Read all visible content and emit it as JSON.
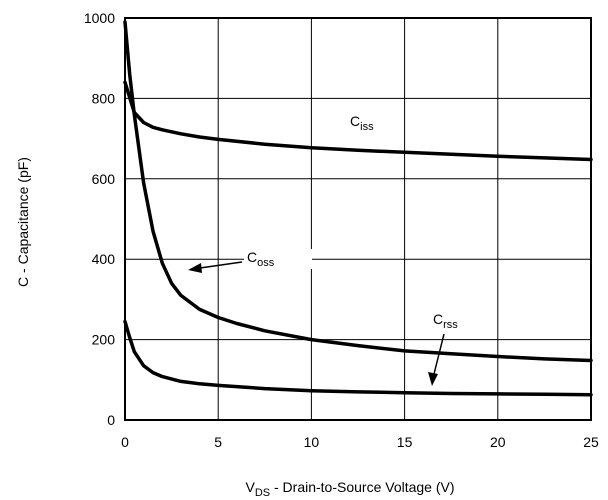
{
  "chart_data": {
    "type": "line",
    "title": "",
    "xlabel": {
      "main": "V",
      "sub": "DS",
      "rest": " - Drain-to-Source Voltage (V)"
    },
    "ylabel": "C - Capacitance (pF)",
    "xlim": [
      0,
      25
    ],
    "ylim": [
      0,
      1000
    ],
    "xticks": [
      "0",
      "5",
      "10",
      "15",
      "20",
      "25"
    ],
    "yticks": [
      "0",
      "200",
      "400",
      "600",
      "800",
      "1000"
    ],
    "grid": true,
    "legend": "none (inline labels)",
    "series": [
      {
        "name": "Ciss",
        "label": {
          "main": "C",
          "sub": "iss"
        },
        "x": [
          0,
          0.5,
          1,
          1.5,
          2,
          3,
          4,
          5,
          7.5,
          10,
          12.5,
          15,
          17.5,
          20,
          22.5,
          25
        ],
        "y": [
          840,
          765,
          740,
          728,
          722,
          712,
          704,
          698,
          686,
          677,
          671,
          666,
          661,
          656,
          652,
          648
        ]
      },
      {
        "name": "Coss",
        "label": {
          "main": "C",
          "sub": "oss"
        },
        "x": [
          0,
          0.25,
          0.5,
          1,
          1.5,
          2,
          2.5,
          3,
          4,
          5,
          6,
          7.5,
          10,
          12.5,
          15,
          17.5,
          20,
          22.5,
          25
        ],
        "y": [
          990,
          860,
          760,
          590,
          470,
          390,
          340,
          310,
          275,
          255,
          240,
          222,
          200,
          185,
          172,
          165,
          158,
          152,
          148
        ]
      },
      {
        "name": "Crss",
        "label": {
          "main": "C",
          "sub": "rss"
        },
        "x": [
          0,
          0.25,
          0.5,
          1,
          1.5,
          2,
          3,
          4,
          5,
          7.5,
          10,
          12.5,
          15,
          17.5,
          20,
          22.5,
          25
        ],
        "y": [
          245,
          205,
          170,
          135,
          118,
          108,
          96,
          90,
          86,
          78,
          73,
          70,
          68,
          66,
          65,
          64,
          63
        ]
      }
    ]
  }
}
